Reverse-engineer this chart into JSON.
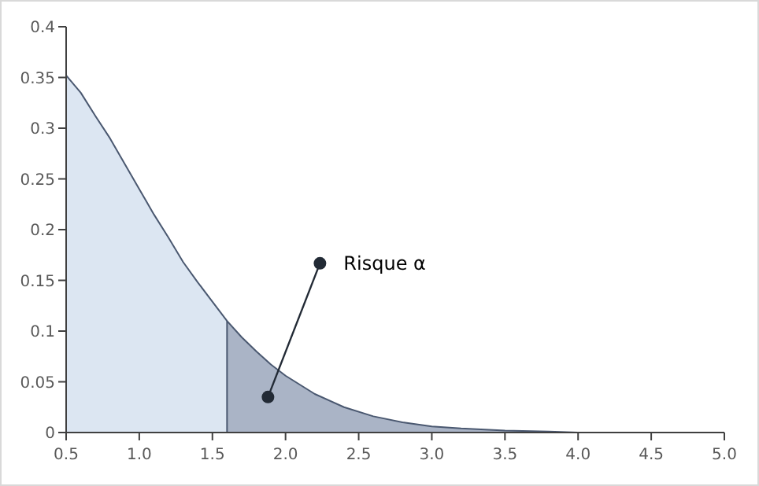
{
  "chart_data": {
    "type": "area",
    "xlim": [
      0.5,
      5.0
    ],
    "ylim": [
      0,
      0.4
    ],
    "xticks": [
      0.5,
      {
        "value": 1,
        "label": "1.0"
      },
      1.5,
      {
        "value": 2,
        "label": "2.0"
      },
      2.5,
      {
        "value": 3,
        "label": "3.0"
      },
      3.5,
      {
        "value": 4,
        "label": "4.0"
      },
      4.5,
      {
        "value": 5,
        "label": "5.0"
      }
    ],
    "yticks": [
      0,
      0.05,
      0.1,
      0.15,
      0.2,
      0.25,
      0.3,
      0.35,
      0.4
    ],
    "grid": false,
    "series": [
      {
        "color": "#dce6f2",
        "x": [
          0.5,
          0.6,
          0.7,
          0.8,
          0.9,
          1.0,
          1.1,
          1.2,
          1.3,
          1.4,
          1.5,
          1.6
        ],
        "values": [
          0.352,
          0.335,
          0.312,
          0.29,
          0.265,
          0.24,
          0.215,
          0.192,
          0.168,
          0.148,
          0.129,
          0.11
        ]
      },
      {
        "color": "#aab4c6",
        "x": [
          1.6,
          1.7,
          1.8,
          1.9,
          2.0,
          2.2,
          2.4,
          2.6,
          2.8,
          3.0,
          3.2,
          3.5,
          3.8,
          4.0
        ],
        "values": [
          0.11,
          0.094,
          0.08,
          0.067,
          0.056,
          0.038,
          0.025,
          0.016,
          0.01,
          0.006,
          0.004,
          0.002,
          0.001,
          0
        ]
      }
    ],
    "annotations": [
      {
        "text": "Risque α",
        "x": 1.88,
        "y": 0.035
      }
    ]
  }
}
